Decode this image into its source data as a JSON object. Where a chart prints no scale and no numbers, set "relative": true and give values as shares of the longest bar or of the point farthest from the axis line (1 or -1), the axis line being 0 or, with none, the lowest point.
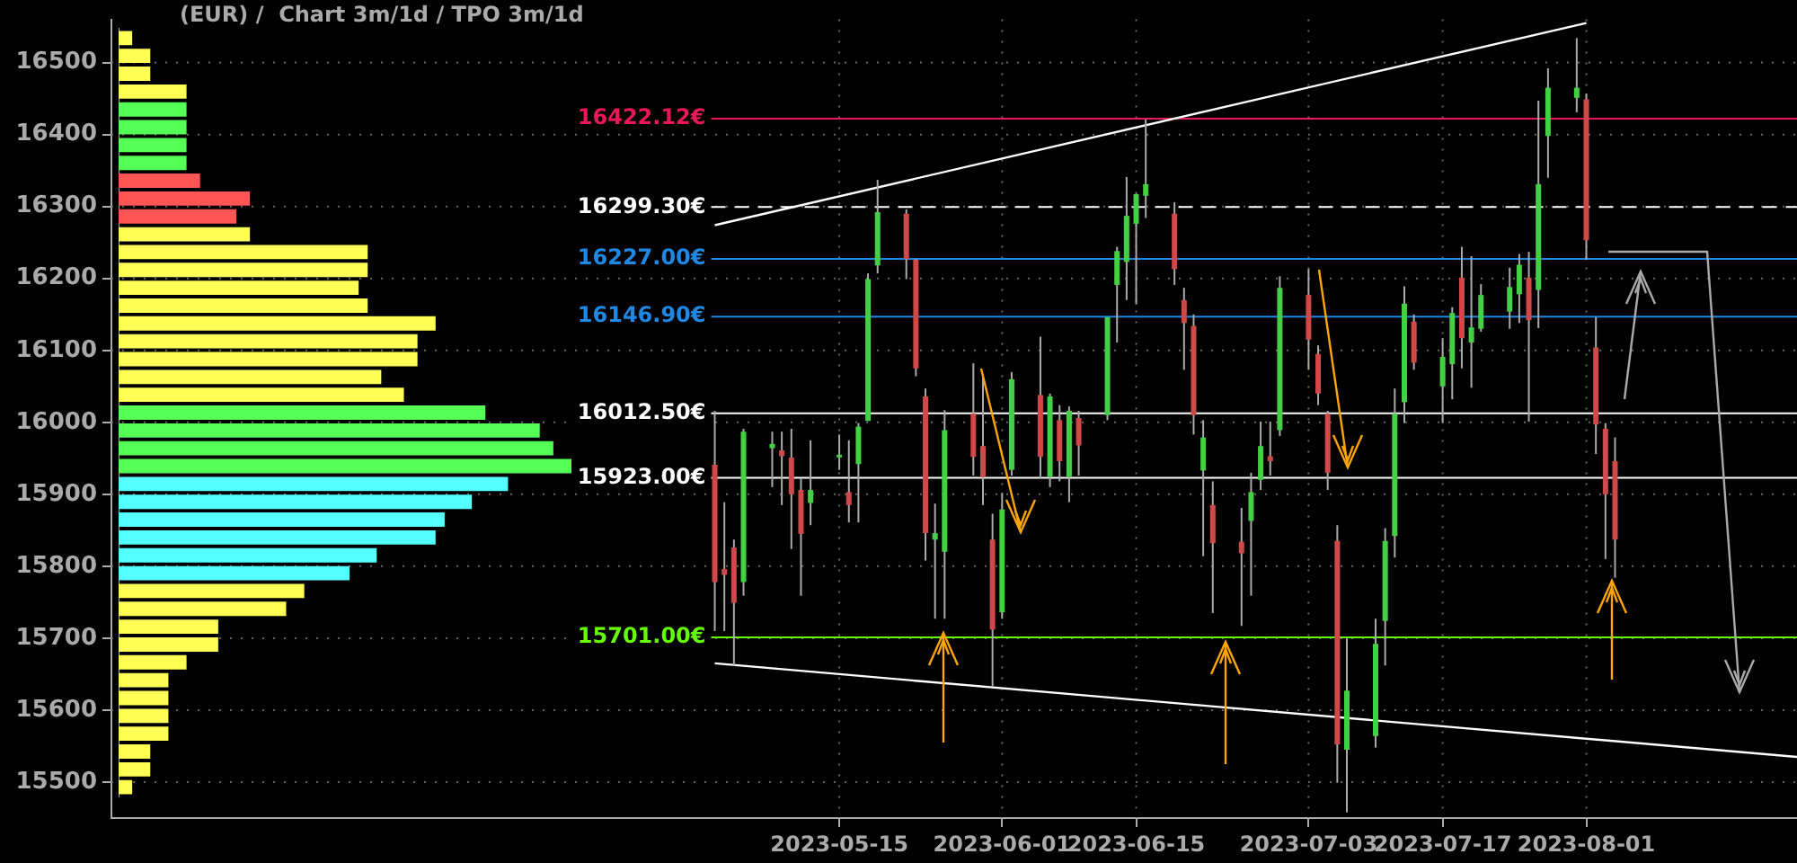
{
  "chart_data": [
    {
      "type": "candlestick",
      "title": "(EUR) /  Chart 3m/1d / TPO 3m/1d",
      "x": [
        "2023-05-02",
        "2023-05-03",
        "2023-05-04",
        "2023-05-05",
        "2023-05-08",
        "2023-05-09",
        "2023-05-10",
        "2023-05-11",
        "2023-05-12",
        "2023-05-15",
        "2023-05-16",
        "2023-05-17",
        "2023-05-18",
        "2023-05-19",
        "2023-05-22",
        "2023-05-23",
        "2023-05-24",
        "2023-05-25",
        "2023-05-26",
        "2023-05-29",
        "2023-05-30",
        "2023-05-31",
        "2023-06-01",
        "2023-06-02",
        "2023-06-05",
        "2023-06-06",
        "2023-06-07",
        "2023-06-08",
        "2023-06-09",
        "2023-06-12",
        "2023-06-13",
        "2023-06-14",
        "2023-06-15",
        "2023-06-16",
        "2023-06-19",
        "2023-06-20",
        "2023-06-21",
        "2023-06-22",
        "2023-06-23",
        "2023-06-26",
        "2023-06-27",
        "2023-06-28",
        "2023-06-29",
        "2023-06-30",
        "2023-07-03",
        "2023-07-04",
        "2023-07-05",
        "2023-07-06",
        "2023-07-07",
        "2023-07-10",
        "2023-07-11",
        "2023-07-12",
        "2023-07-13",
        "2023-07-14",
        "2023-07-17",
        "2023-07-18",
        "2023-07-19",
        "2023-07-20",
        "2023-07-21",
        "2023-07-24",
        "2023-07-25",
        "2023-07-26",
        "2023-07-27",
        "2023-07-28",
        "2023-07-31",
        "2023-08-01",
        "2023-08-02",
        "2023-08-03",
        "2023-08-04"
      ],
      "ohlc": [
        [
          15941,
          16016,
          15710,
          15778
        ],
        [
          15796,
          15889,
          15710,
          15788
        ],
        [
          15826,
          15837,
          15662,
          15749
        ],
        [
          15778,
          15991,
          15759,
          15987
        ],
        [
          15964,
          15987,
          15910,
          15970
        ],
        [
          15961,
          15987,
          15885,
          15953
        ],
        [
          15951,
          15991,
          15824,
          15900
        ],
        [
          15906,
          15922,
          15759,
          15845
        ],
        [
          15888,
          15975,
          15857,
          15906
        ],
        [
          15955,
          15983,
          15934,
          15955
        ],
        [
          15903,
          15975,
          15861,
          15885
        ],
        [
          15942,
          15999,
          15861,
          15994
        ],
        [
          16002,
          16207,
          16002,
          16199
        ],
        [
          16218,
          16337,
          16207,
          16292
        ],
        [
          16290,
          16296,
          16199,
          16227
        ],
        [
          16226,
          16227,
          16064,
          16075
        ],
        [
          16036,
          16047,
          15808,
          15846
        ],
        [
          15837,
          15887,
          15727,
          15846
        ],
        [
          15820,
          16017,
          15727,
          15989
        ],
        [
          16012,
          16082,
          15926,
          15952
        ],
        [
          15967,
          16063,
          15885,
          15924
        ],
        [
          15837,
          15873,
          15633,
          15712
        ],
        [
          15736,
          15902,
          15727,
          15879
        ],
        [
          15934,
          16070,
          15926,
          16060
        ],
        [
          16038,
          16119,
          15922,
          15952
        ],
        [
          15924,
          16040,
          15910,
          16036
        ],
        [
          16003,
          16024,
          15918,
          15946
        ],
        [
          15924,
          16022,
          15889,
          16016
        ],
        [
          16006,
          16016,
          15926,
          15968
        ],
        [
          16010,
          16146,
          16003,
          16146
        ],
        [
          16191,
          16244,
          16111,
          16238
        ],
        [
          16223,
          16341,
          16170,
          16287
        ],
        [
          16276,
          16318,
          16164,
          16317
        ],
        [
          16315,
          16421,
          16284,
          16331
        ],
        [
          16290,
          16306,
          16191,
          16213
        ],
        [
          16170,
          16187,
          16073,
          16138
        ],
        [
          16134,
          16150,
          15983,
          16010
        ],
        [
          15933,
          16003,
          15814,
          15979
        ],
        [
          15885,
          15918,
          15735,
          15832
        ],
        [
          15834,
          15881,
          15717,
          15818
        ],
        [
          15863,
          15930,
          15759,
          15903
        ],
        [
          15920,
          16001,
          15906,
          15967
        ],
        [
          15953,
          16001,
          15926,
          15946
        ],
        [
          15989,
          16203,
          15981,
          16187
        ],
        [
          16177,
          16213,
          16073,
          16115
        ],
        [
          16095,
          16107,
          16024,
          16040
        ],
        [
          16012,
          16016,
          15906,
          15930
        ],
        [
          15835,
          15857,
          15499,
          15552
        ],
        [
          15545,
          15700,
          15458,
          15627
        ],
        [
          15564,
          15727,
          15548,
          15692
        ],
        [
          15724,
          15853,
          15662,
          15835
        ],
        [
          15842,
          16047,
          15812,
          16012
        ],
        [
          16028,
          16189,
          15999,
          16165
        ],
        [
          16140,
          16150,
          16073,
          16083
        ],
        [
          16050,
          16117,
          15999,
          16091
        ],
        [
          16081,
          16160,
          16032,
          16152
        ],
        [
          16201,
          16244,
          16075,
          16117
        ],
        [
          16111,
          16231,
          16048,
          16132
        ],
        [
          16130,
          16192,
          16126,
          16177
        ],
        [
          16154,
          16215,
          16130,
          16188
        ],
        [
          16178,
          16234,
          16138,
          16219
        ],
        [
          16201,
          16237,
          16001,
          16142
        ],
        [
          16184,
          16447,
          16131,
          16331
        ],
        [
          16398,
          16492,
          16340,
          16465
        ],
        [
          16451,
          16534,
          16431,
          16465
        ],
        [
          16449,
          16457,
          16226,
          16253
        ],
        [
          16104,
          16146,
          15956,
          15997
        ],
        [
          15991,
          15999,
          15810,
          15900
        ],
        [
          15946,
          15979,
          15784,
          15837
        ]
      ],
      "series": [
        {
          "type": "line",
          "color": "#ffffff",
          "x": [
            "2023-05-02",
            "2023-08-01"
          ],
          "values": [
            16274,
            16555
          ]
        },
        {
          "type": "line",
          "color": "#ffffff",
          "x": [
            "2023-05-02",
            "2023-08-23"
          ],
          "values": [
            15665,
            15535
          ]
        }
      ],
      "xlim": [
        "2023-02-28",
        "2023-08-23"
      ],
      "xticks": [
        "2023-05-15",
        "2023-06-01",
        "2023-06-15",
        "2023-07-03",
        "2023-07-17",
        "2023-08-01"
      ],
      "ylim": [
        15450,
        16560
      ],
      "yticks": [
        15500,
        15600,
        15700,
        15800,
        15900,
        16000,
        16100,
        16200,
        16300,
        16400,
        16500
      ],
      "grid": true,
      "ref_lines": [
        {
          "axis": "y",
          "value": 16422.12,
          "label": "16422.12€",
          "color": "#e8185a"
        },
        {
          "axis": "y",
          "value": 16299.3,
          "label": "16299.30€",
          "color": "#ffffff",
          "line_style": "dashed"
        },
        {
          "axis": "y",
          "value": 16227,
          "label": "16227.00€",
          "color": "#1e88e5"
        },
        {
          "axis": "y",
          "value": 16146.9,
          "label": "16146.90€",
          "color": "#1e88e5"
        },
        {
          "axis": "y",
          "value": 16012.5,
          "label": "16012.50€",
          "color": "#ffffff"
        },
        {
          "axis": "y",
          "value": 15923,
          "label": "15923.00€",
          "color": "#ffffff"
        },
        {
          "axis": "y",
          "value": 15701,
          "label": "15701.00€",
          "color": "#66ff00"
        }
      ]
    },
    {
      "type": "bar",
      "orientation": "horizontal",
      "relative": true,
      "categories": [
        null,
        null,
        null,
        null,
        null,
        null,
        null,
        null,
        null,
        null,
        null,
        null,
        null,
        null,
        null,
        null,
        null,
        null,
        null,
        null,
        null,
        null,
        null,
        null,
        null,
        null,
        null,
        null,
        null,
        null,
        null,
        null,
        null,
        null,
        null,
        null,
        null,
        null,
        null,
        null,
        null,
        null,
        null
      ],
      "values": [
        0.03,
        0.07,
        0.07,
        0.15,
        0.15,
        0.15,
        0.15,
        0.15,
        0.18,
        0.29,
        0.26,
        0.29,
        0.55,
        0.55,
        0.53,
        0.55,
        0.7,
        0.66,
        0.66,
        0.58,
        0.63,
        0.81,
        0.93,
        0.96,
        1,
        0.86,
        0.78,
        0.72,
        0.7,
        0.57,
        0.51,
        0.41,
        0.37,
        0.22,
        0.22,
        0.15,
        0.11,
        0.11,
        0.11,
        0.11,
        0.07,
        0.07,
        0.03
      ],
      "colors": [
        "#ffff55",
        "#ffff55",
        "#ffff55",
        "#ffff55",
        "#55ff55",
        "#55ff55",
        "#55ff55",
        "#55ff55",
        "#ff5555",
        "#ff5555",
        "#ff5555",
        "#ffff55",
        "#ffff55",
        "#ffff55",
        "#ffff55",
        "#ffff55",
        "#ffff55",
        "#ffff55",
        "#ffff55",
        "#ffff55",
        "#ffff55",
        "#55ff55",
        "#55ff55",
        "#55ff55",
        "#55ff55",
        "#55ffff",
        "#55ffff",
        "#55ffff",
        "#55ffff",
        "#55ffff",
        "#55ffff",
        "#ffff55",
        "#ffff55",
        "#ffff55",
        "#ffff55",
        "#ffff55",
        "#ffff55",
        "#ffff55",
        "#ffff55",
        "#ffff55",
        "#ffff55",
        "#ffff55",
        "#ffff55"
      ]
    }
  ]
}
